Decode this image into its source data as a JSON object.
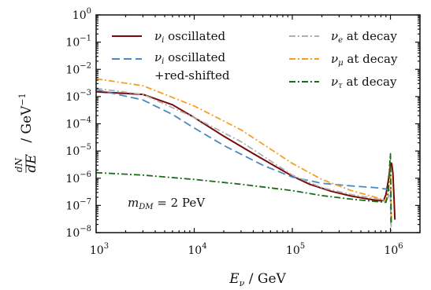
{
  "chart_data": {
    "type": "line",
    "xlabel": "E_ν / GeV",
    "ylabel": "dN/dE / GeV⁻¹",
    "xscale": "log",
    "yscale": "log",
    "xlim": [
      1000,
      2000000
    ],
    "ylim": [
      1e-08,
      1
    ],
    "x_ticks": [
      {
        "value": 1000,
        "base": "10",
        "exp": "3"
      },
      {
        "value": 10000,
        "base": "10",
        "exp": "4"
      },
      {
        "value": 100000,
        "base": "10",
        "exp": "5"
      },
      {
        "value": 1000000,
        "base": "10",
        "exp": "6"
      }
    ],
    "y_ticks": [
      {
        "value": 1,
        "base": "10",
        "exp": "0"
      },
      {
        "value": 0.1,
        "base": "10",
        "exp": "−1"
      },
      {
        "value": 0.01,
        "base": "10",
        "exp": "−2"
      },
      {
        "value": 0.001,
        "base": "10",
        "exp": "−3"
      },
      {
        "value": 0.0001,
        "base": "10",
        "exp": "−4"
      },
      {
        "value": 1e-05,
        "base": "10",
        "exp": "−5"
      },
      {
        "value": 1e-06,
        "base": "10",
        "exp": "−6"
      },
      {
        "value": 1e-07,
        "base": "10",
        "exp": "−7"
      },
      {
        "value": 1e-08,
        "base": "10",
        "exp": "−8"
      }
    ],
    "grid": false,
    "legend_position": "top",
    "annotation": "m_DM = 2 PeV",
    "series": [
      {
        "name": "ν_i oscillated",
        "color": "#7a0a0a",
        "dash": "solid",
        "x": [
          1000,
          3000,
          6000,
          10000,
          20000,
          40000,
          70000,
          100000,
          150000,
          250000,
          400000,
          600000,
          750000,
          850000,
          900000,
          950000,
          1000000,
          1030000,
          1060000,
          1090000,
          1110000
        ],
        "y": [
          0.0015,
          0.0012,
          0.0005,
          0.00017,
          3.5e-05,
          8e-06,
          2.5e-06,
          1.2e-06,
          6e-07,
          3.3e-07,
          2.2e-07,
          1.7e-07,
          1.5e-07,
          1.5e-07,
          2.5e-07,
          8e-07,
          3e-06,
          3.5e-06,
          1.5e-06,
          1.5e-07,
          3e-08
        ]
      },
      {
        "name": "ν_i oscillated +red-shifted",
        "color": "#4a88c2",
        "dash": "long-dash",
        "x": [
          1000,
          3000,
          6000,
          10000,
          20000,
          50000,
          100000,
          200000,
          400000,
          700000,
          900000,
          1000000,
          1010000
        ],
        "y": [
          0.0018,
          0.00075,
          0.00022,
          7e-05,
          1.6e-05,
          3e-06,
          1.1e-06,
          6.5e-07,
          5.2e-07,
          4.5e-07,
          4e-07,
          3.5e-07,
          2e-08
        ]
      },
      {
        "name": "ν_e at decay",
        "color": "#b0b0b0",
        "dash": "dash-dot",
        "x": [
          1000,
          3000,
          10000,
          30000,
          100000,
          200000,
          400000,
          700000,
          900000,
          950000,
          1000000,
          1020000
        ],
        "y": [
          0.002,
          0.0012,
          0.00017,
          2.2e-05,
          1.3e-06,
          4.5e-07,
          2.5e-07,
          1.8e-07,
          1.5e-07,
          2e-07,
          3e-07,
          1e-08
        ]
      },
      {
        "name": "ν_μ at decay",
        "color": "#f5a020",
        "dash": "dash-dot",
        "x": [
          1000,
          3000,
          10000,
          30000,
          100000,
          200000,
          400000,
          700000,
          900000,
          950000,
          980000,
          1000000,
          1020000
        ],
        "y": [
          0.0045,
          0.0025,
          0.00045,
          6e-05,
          3.5e-06,
          9e-07,
          3.5e-07,
          2e-07,
          1.5e-07,
          3e-07,
          8e-07,
          2e-06,
          2e-08
        ]
      },
      {
        "name": "ν_τ at decay",
        "color": "#1a6b1a",
        "dash": "dash-dot",
        "x": [
          1000,
          3000,
          10000,
          30000,
          100000,
          200000,
          400000,
          700000,
          900000,
          950000,
          980000,
          1000000,
          1020000
        ],
        "y": [
          1.6e-06,
          1.3e-06,
          9e-07,
          6e-07,
          3.5e-07,
          2.3e-07,
          1.7e-07,
          1.4e-07,
          1.3e-07,
          3e-07,
          2.5e-06,
          8e-06,
          2e-08
        ]
      }
    ]
  }
}
